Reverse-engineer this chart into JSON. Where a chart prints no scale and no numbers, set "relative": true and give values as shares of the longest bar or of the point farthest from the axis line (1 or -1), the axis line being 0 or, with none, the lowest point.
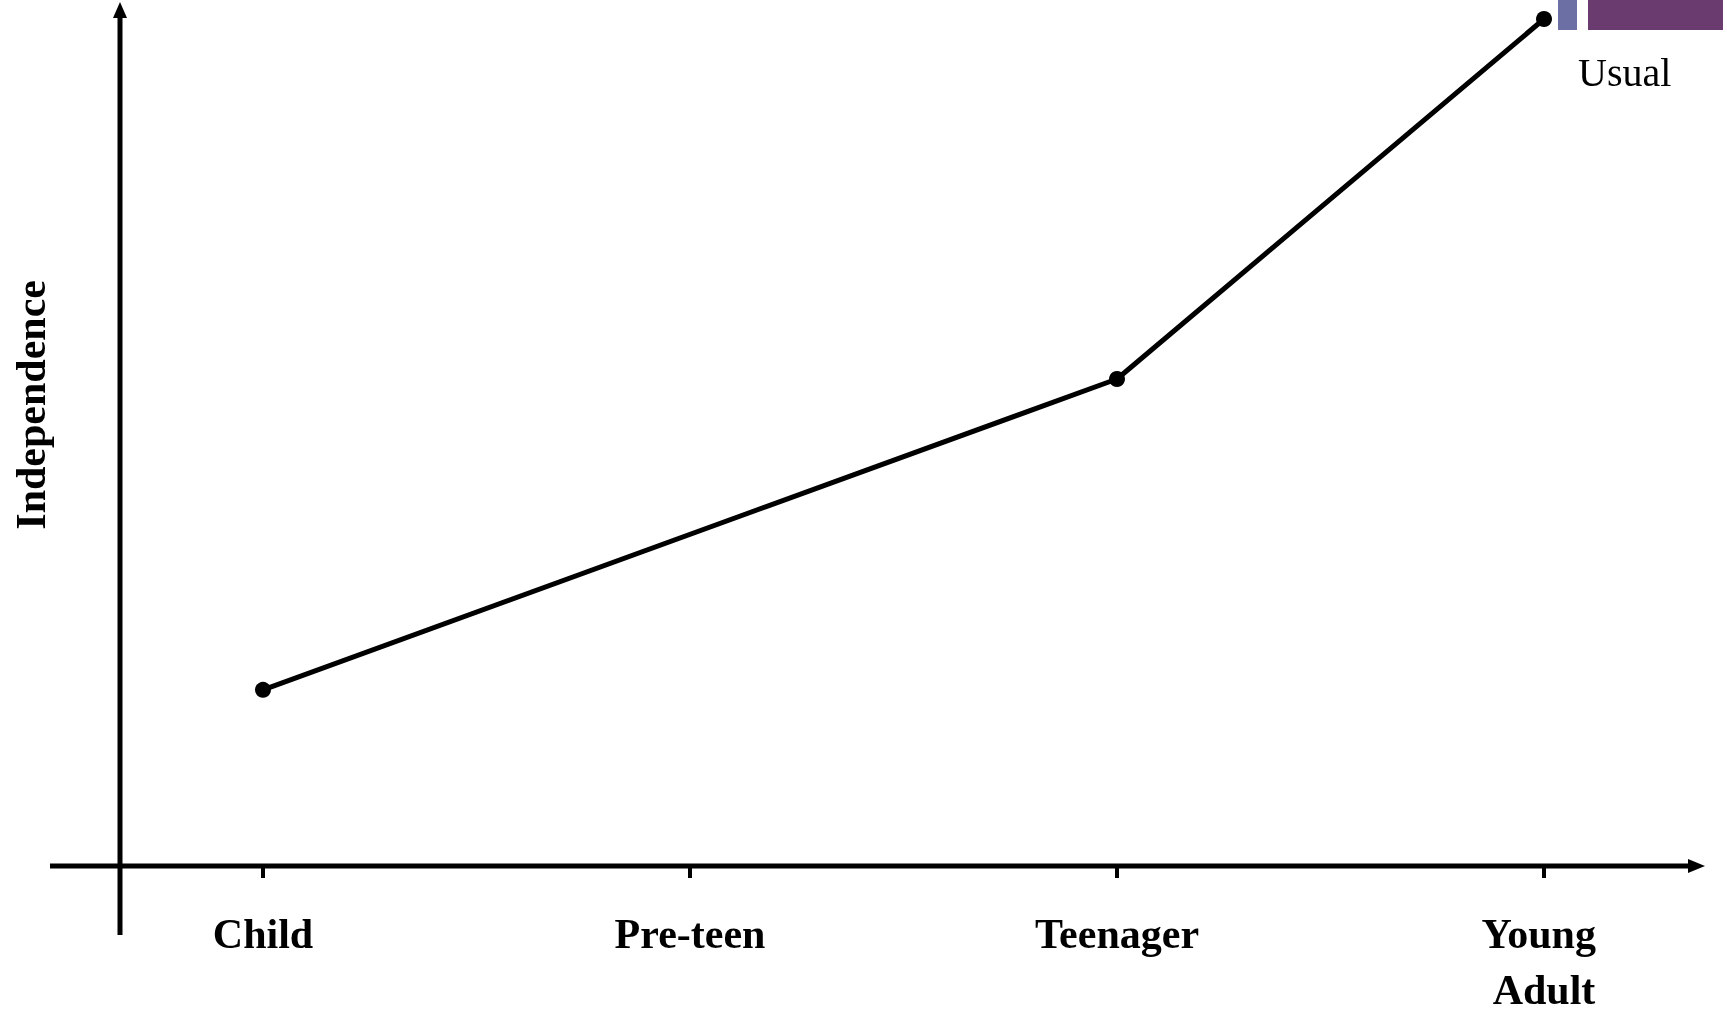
{
  "chart_data": {
    "type": "line",
    "relative": true,
    "ylabel": "Independence",
    "categories": [
      "Child",
      "Pre-teen",
      "Teenager",
      "Young Adult"
    ],
    "series": [
      {
        "name": "Usual",
        "color": "#000000",
        "values": [
          0.208,
          null,
          0.575,
          1
        ]
      }
    ],
    "marker": "circle",
    "line_style": "solid",
    "grid": false,
    "legend": false
  }
}
